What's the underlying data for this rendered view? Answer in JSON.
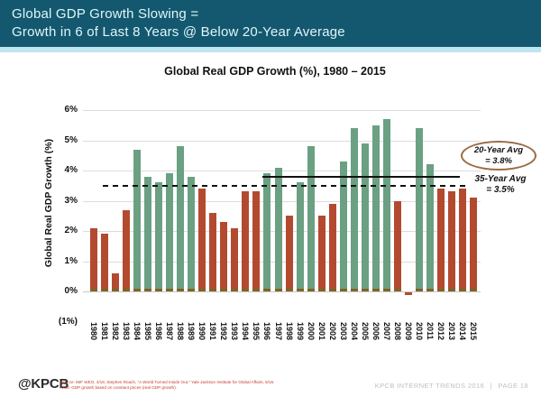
{
  "header": {
    "title_line1": "Global GDP Growth Slowing =",
    "title_line2": "Growth in 6 of Last 8 Years @ Below 20-Year Average"
  },
  "chart_data": {
    "type": "bar",
    "title": "Global Real GDP Growth (%), 1980 – 2015",
    "ylabel": "Global Real GDP Growth (%)",
    "xlabel": "",
    "ylim": [
      -1,
      6
    ],
    "grid": "horizontal",
    "y_ticks": [
      {
        "label": "6%",
        "value": 6
      },
      {
        "label": "5%",
        "value": 5
      },
      {
        "label": "4%",
        "value": 4
      },
      {
        "label": "3%",
        "value": 3
      },
      {
        "label": "2%",
        "value": 2
      },
      {
        "label": "1%",
        "value": 1
      },
      {
        "label": "0%",
        "value": 0
      },
      {
        "label": "(1%)",
        "value": -1
      }
    ],
    "categories": [
      1980,
      1981,
      1982,
      1983,
      1984,
      1985,
      1986,
      1987,
      1988,
      1989,
      1990,
      1991,
      1992,
      1993,
      1994,
      1995,
      1996,
      1997,
      1998,
      1999,
      2000,
      2001,
      2002,
      2003,
      2004,
      2005,
      2006,
      2007,
      2008,
      2009,
      2010,
      2011,
      2012,
      2013,
      2014,
      2015
    ],
    "values": [
      2.1,
      1.9,
      0.6,
      2.7,
      4.7,
      3.8,
      3.6,
      3.9,
      4.8,
      3.8,
      3.4,
      2.6,
      2.3,
      2.1,
      3.3,
      3.3,
      3.9,
      4.1,
      2.5,
      3.6,
      4.8,
      2.5,
      2.9,
      4.3,
      5.4,
      4.9,
      5.5,
      5.7,
      3.0,
      -0.1,
      5.4,
      4.2,
      3.4,
      3.3,
      3.4,
      3.1
    ],
    "color_rule": "green if value >= 35-year average (3.5) else red",
    "color_threshold": 3.5,
    "colors": {
      "above_avg_green": "#6BA083",
      "below_avg_red": "#B34A2F",
      "bar_base": "#7E6526"
    },
    "reference_lines": [
      {
        "name": "20-year-average",
        "value": 3.8,
        "style": "solid",
        "label_line1": "20-Year Avg",
        "label_line2": "= 3.8%"
      },
      {
        "name": "35-year-average",
        "value": 3.5,
        "style": "dashed",
        "label_line1": "35-Year Avg",
        "label_line2": "= 3.5%"
      }
    ],
    "legend_position": "right-annotations"
  },
  "footer": {
    "logo": "@KPCB",
    "source_line1": "Source: IMF WEO, 4/16; Stephen Roach, \"A World Turned Inside Out,\" Yale Jackson Institute for Global Affairs, 5/16.",
    "source_line2": "Note: GDP growth based on constant prices (real GDP growth).",
    "brand_text": "KPCB INTERNET TRENDS 2016",
    "separator": "|",
    "page_text": "PAGE 18"
  },
  "colors": {
    "header_bg": "#14586F",
    "header_text": "#DFF6F9",
    "accent_strip": "#BFE5F0",
    "annotation_oval_border": "#9C6C42",
    "source_text": "#C23B2E",
    "footer_right_text": "#BFBFBF"
  }
}
